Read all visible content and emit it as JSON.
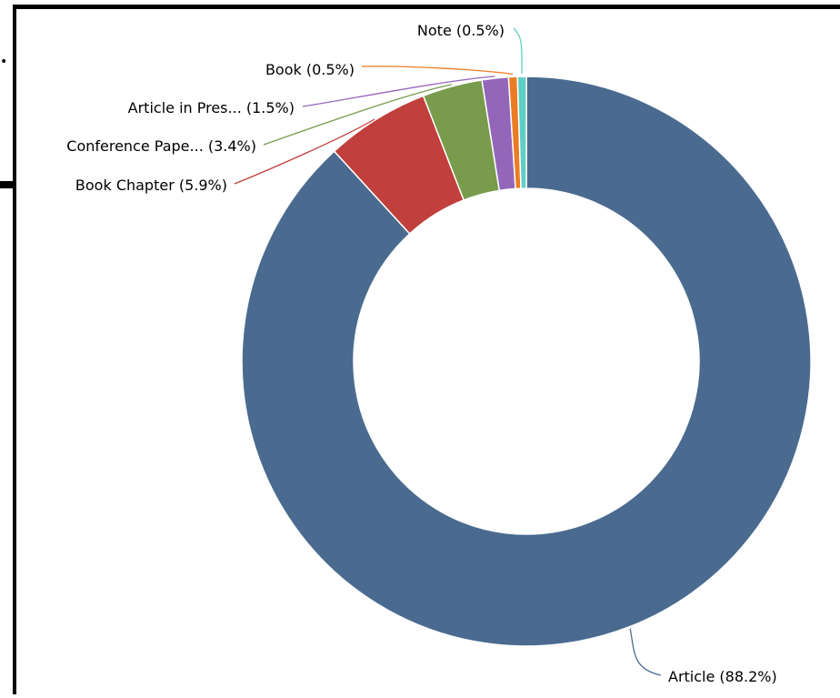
{
  "chart_data": {
    "type": "pie",
    "variant": "donut",
    "title": "",
    "slices": [
      {
        "label": "Article",
        "display_label": "Article (88.2%)",
        "value": 88.2,
        "color": "#4a6b8f"
      },
      {
        "label": "Book Chapter",
        "display_label": "Book Chapter (5.9%)",
        "value": 5.9,
        "color": "#c13f3c"
      },
      {
        "label": "Conference Pape...",
        "display_label": "Conference Pape... (3.4%)",
        "value": 3.4,
        "color": "#799b4c"
      },
      {
        "label": "Article in Pres...",
        "display_label": "Article in Pres... (1.5%)",
        "value": 1.5,
        "color": "#9466ba"
      },
      {
        "label": "Book",
        "display_label": "Book (0.5%)",
        "value": 0.5,
        "color": "#ec7c24"
      },
      {
        "label": "Note",
        "display_label": "Note (0.5%)",
        "value": 0.5,
        "color": "#5fcfc6"
      }
    ],
    "legend": "none"
  }
}
